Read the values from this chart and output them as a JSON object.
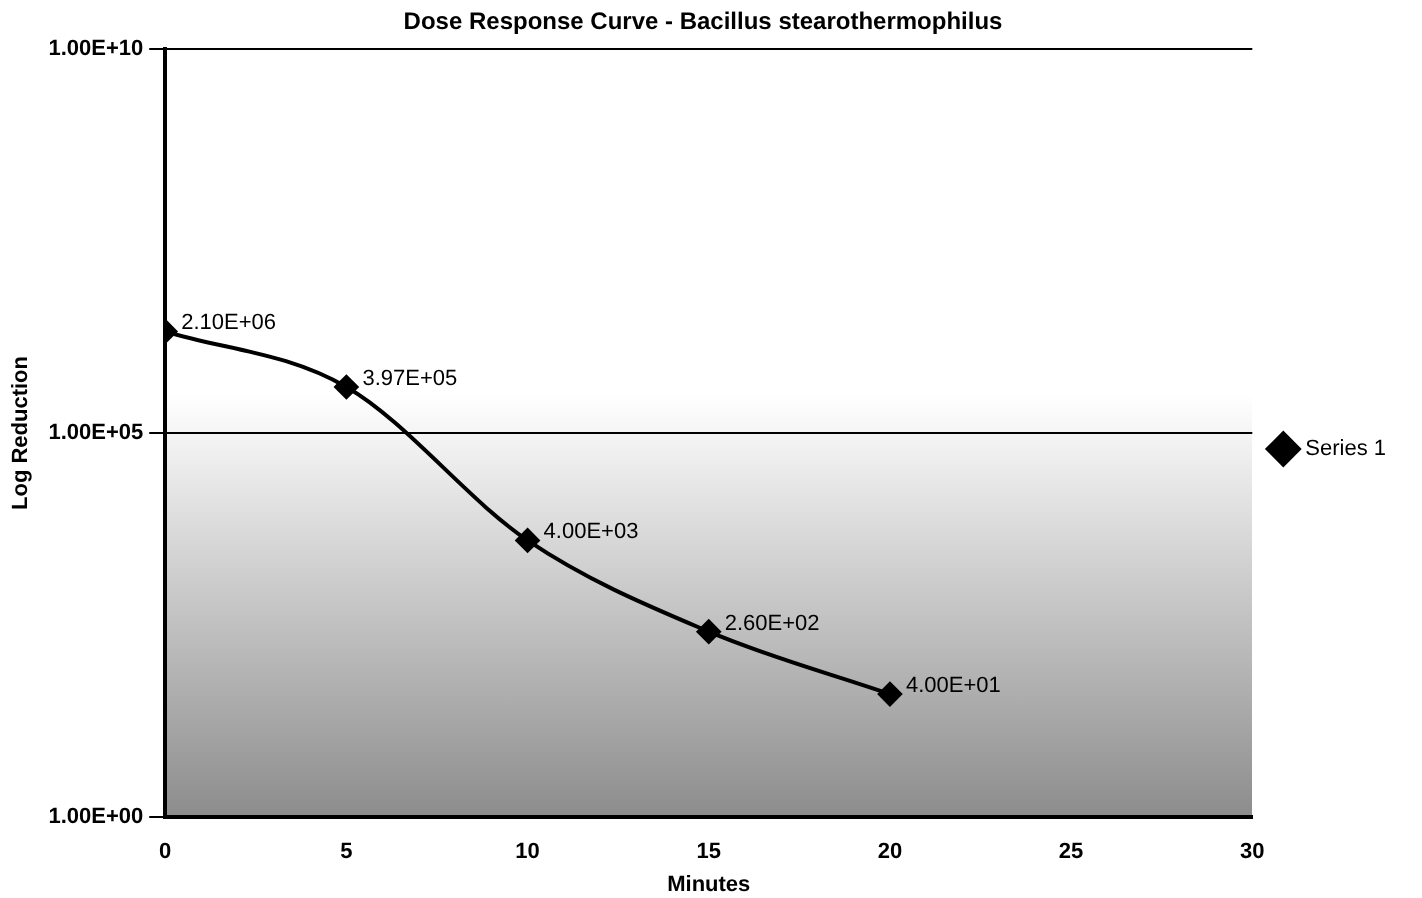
{
  "chart_data": {
    "type": "line",
    "title": "Dose Response Curve - Bacillus stearothermophilus",
    "xlabel": "Minutes",
    "ylabel": "Log Reduction",
    "x": [
      0,
      5,
      10,
      15,
      20
    ],
    "series": [
      {
        "name": "Series 1",
        "color": "#000000",
        "values": [
          2100000,
          397000,
          4000,
          260,
          40
        ],
        "value_labels": [
          "2.10E+06",
          "3.97E+05",
          "4.00E+03",
          "2.60E+02",
          "4.00E+01"
        ]
      }
    ],
    "xlim": [
      0,
      30
    ],
    "xticks": [
      0,
      5,
      10,
      15,
      20,
      25,
      30
    ],
    "ylim": [
      1,
      10000000000
    ],
    "yticks": [
      {
        "value": 1,
        "label": "1.00E+00"
      },
      {
        "value": 100000,
        "label": "1.00E+05"
      },
      {
        "value": 10000000000,
        "label": "1.00E+10"
      }
    ],
    "log": "y",
    "grid": "y",
    "legend": "right",
    "marker": "diamond",
    "line_style": "solid"
  }
}
